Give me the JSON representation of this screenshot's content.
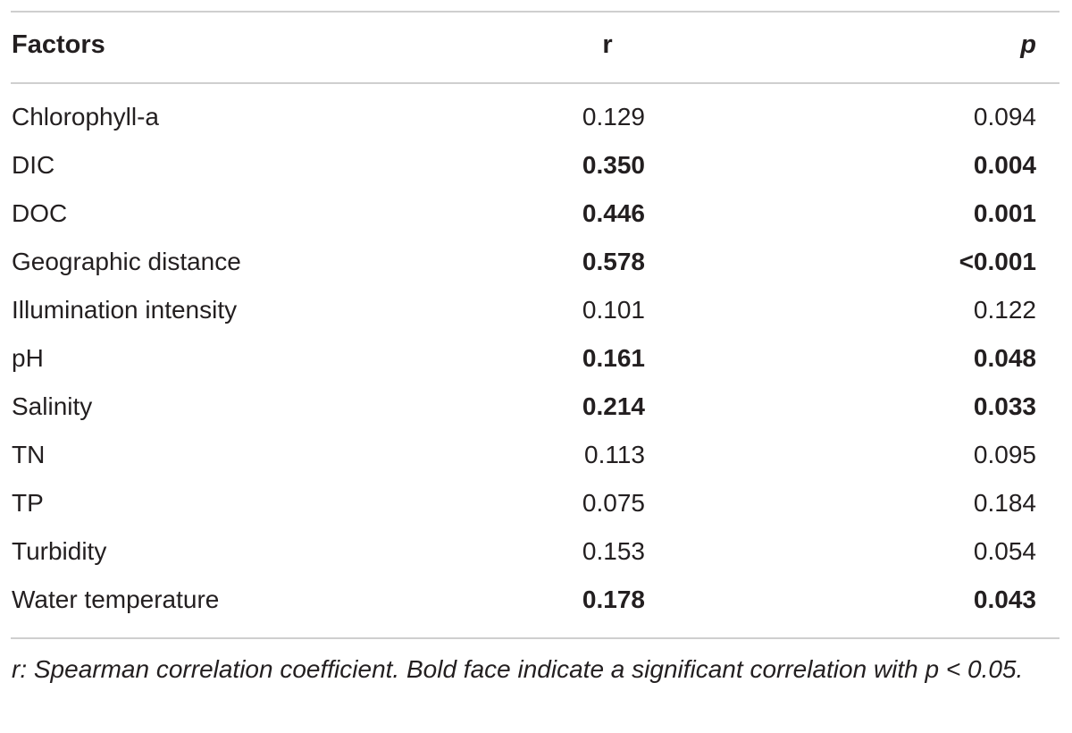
{
  "table": {
    "headers": {
      "factors": "Factors",
      "r": "r",
      "p": "p"
    },
    "rows": [
      {
        "factor": "Chlorophyll-a",
        "r": "0.129",
        "p": "0.094",
        "significant": false
      },
      {
        "factor": "DIC",
        "r": "0.350",
        "p": "0.004",
        "significant": true
      },
      {
        "factor": "DOC",
        "r": "0.446",
        "p": "0.001",
        "significant": true
      },
      {
        "factor": "Geographic distance",
        "r": "0.578",
        "p": "<0.001",
        "significant": true
      },
      {
        "factor": "Illumination intensity",
        "r": "0.101",
        "p": "0.122",
        "significant": false
      },
      {
        "factor": "pH",
        "r": "0.161",
        "p": "0.048",
        "significant": true
      },
      {
        "factor": "Salinity",
        "r": "0.214",
        "p": "0.033",
        "significant": true
      },
      {
        "factor": "TN",
        "r": "0.113",
        "p": "0.095",
        "significant": false
      },
      {
        "factor": "TP",
        "r": "0.075",
        "p": "0.184",
        "significant": false
      },
      {
        "factor": "Turbidity",
        "r": "0.153",
        "p": "0.054",
        "significant": false
      },
      {
        "factor": "Water temperature",
        "r": "0.178",
        "p": "0.043",
        "significant": true
      }
    ],
    "footnote": "r: Spearman correlation coefficient. Bold face indicate a significant correlation with p < 0.05."
  }
}
